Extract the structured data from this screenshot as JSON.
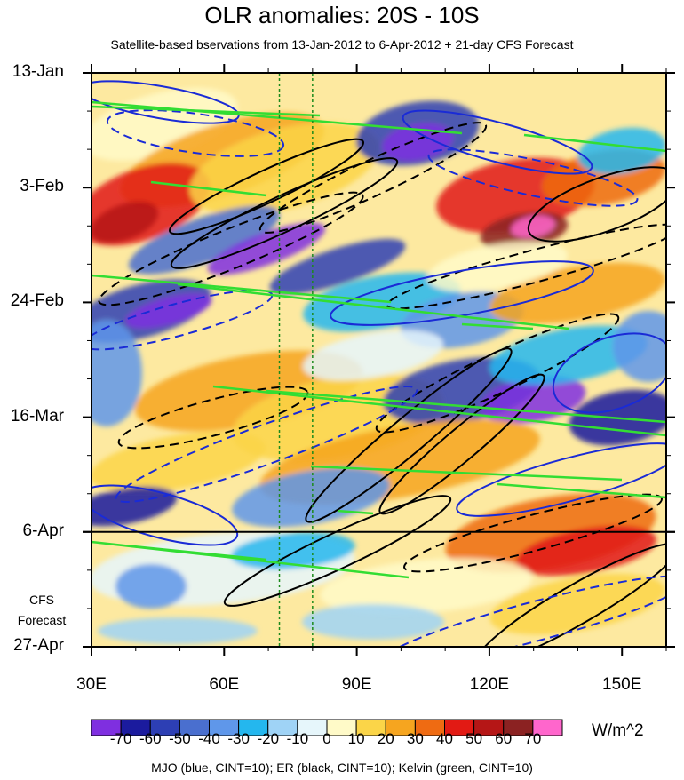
{
  "chart_data": {
    "type": "heatmap",
    "title": "OLR anomalies: 20S - 10S",
    "subtitle": "Satellite-based bservations from 13-Jan-2012 to 6-Apr-2012 + 21-day CFS Forecast",
    "x_ticks": [
      "30E",
      "60E",
      "90E",
      "120E",
      "150E"
    ],
    "x_tick_values": [
      30,
      60,
      90,
      120,
      150
    ],
    "xlim": [
      30,
      160
    ],
    "y_ticks": [
      "13-Jan",
      "3-Feb",
      "24-Feb",
      "16-Mar",
      "6-Apr",
      "27-Apr"
    ],
    "y_range": [
      "13-Jan-2012",
      "27-Apr-2012"
    ],
    "observation_end": "6-Apr-2012",
    "forecast_label": [
      "CFS",
      "Forecast"
    ],
    "reference_lines_lon": [
      72.5,
      80
    ],
    "colorbar": {
      "labels": [
        "-70",
        "-60",
        "-50",
        "-40",
        "-30",
        "-20",
        "-10",
        "0",
        "10",
        "20",
        "30",
        "40",
        "50",
        "60",
        "70"
      ],
      "colors": [
        "#7f2fe0",
        "#1b1b9e",
        "#2d3fb4",
        "#4a6fcf",
        "#5f97ea",
        "#24b7ee",
        "#9fd3f6",
        "#e6f6fb",
        "#fffac8",
        "#fbd548",
        "#f6a51f",
        "#ef6b12",
        "#e21a14",
        "#b51616",
        "#8b2222",
        "#ff66cc"
      ],
      "units": "W/m^2"
    },
    "footer": "MJO (blue, CINT=10); ER (black, CINT=10); Kelvin (green, CINT=10)",
    "contours": {
      "MJO": {
        "color": "#1a2bd6",
        "interval": 10
      },
      "ER": {
        "color": "#000000",
        "interval": 10
      },
      "Kelvin": {
        "color": "#33dd33",
        "interval": 10
      }
    }
  }
}
